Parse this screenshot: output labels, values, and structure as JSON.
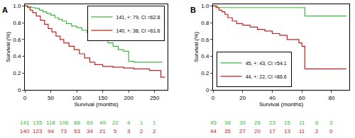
{
  "chart_data": [
    {
      "type": "step",
      "title": "A",
      "x_label": "Survival (months)",
      "y_label": "Survival (%)",
      "xlim": [
        0,
        275
      ],
      "xticks": [
        0,
        50,
        100,
        150,
        200,
        250
      ],
      "ylim": [
        0,
        1.02
      ],
      "yticks": [
        0,
        0.2,
        0.4,
        0.6,
        0.8,
        {
          "value": 1,
          "label": "1.0"
        }
      ],
      "legend": "upper right",
      "at_risk_x": [
        0,
        25,
        50,
        75,
        100,
        125,
        150,
        175,
        200,
        225,
        250
      ],
      "series": [
        {
          "name": "141, +: 79, CI =62.8",
          "color": "#3cb83c",
          "x": [
            0,
            5,
            12,
            20,
            28,
            35,
            42,
            50,
            58,
            65,
            72,
            80,
            90,
            100,
            110,
            120,
            130,
            140,
            150,
            160,
            170,
            180,
            190,
            200,
            210,
            265
          ],
          "values": [
            1,
            0.99,
            0.98,
            0.97,
            0.95,
            0.93,
            0.91,
            0.89,
            0.86,
            0.84,
            0.82,
            0.79,
            0.76,
            0.74,
            0.71,
            0.68,
            0.66,
            0.62,
            0.59,
            0.56,
            0.52,
            0.48,
            0.46,
            0.34,
            0.33,
            0.33
          ],
          "at_risk": [
            141,
            135,
            118,
            106,
            88,
            69,
            49,
            22,
            4,
            1,
            1
          ]
        },
        {
          "name": "140, +: 38, CI =61.6",
          "color": "#c8201e",
          "x": [
            0,
            5,
            10,
            15,
            22,
            30,
            38,
            45,
            52,
            60,
            68,
            75,
            85,
            95,
            105,
            115,
            125,
            135,
            150,
            170,
            190,
            210,
            240,
            262,
            270
          ],
          "values": [
            1,
            0.98,
            0.95,
            0.92,
            0.88,
            0.83,
            0.78,
            0.73,
            0.69,
            0.64,
            0.6,
            0.56,
            0.52,
            0.48,
            0.43,
            0.38,
            0.33,
            0.3,
            0.28,
            0.27,
            0.26,
            0.25,
            0.23,
            0.15,
            0.15
          ],
          "at_risk": [
            140,
            123,
            94,
            73,
            53,
            34,
            21,
            5,
            3,
            2,
            2
          ]
        }
      ]
    },
    {
      "type": "step",
      "title": "B",
      "x_label": "Survival (months)",
      "y_label": "Survival (%)",
      "xlim": [
        0,
        92
      ],
      "xticks": [
        0,
        20,
        40,
        60,
        80
      ],
      "ylim": [
        0,
        1.02
      ],
      "yticks": [
        0,
        0.2,
        0.4,
        0.6,
        0.8,
        {
          "value": 1,
          "label": "1.0"
        }
      ],
      "legend": "lower left",
      "at_risk_x": [
        0,
        10,
        20,
        30,
        40,
        50,
        60,
        70,
        80
      ],
      "series": [
        {
          "name": "45, +: 43, CI =54.1",
          "color": "#3cb83c",
          "x": [
            0,
            3,
            60,
            62,
            90
          ],
          "values": [
            1,
            0.98,
            0.98,
            0.88,
            0.88
          ],
          "at_risk": [
            45,
            38,
            30,
            26,
            23,
            15,
            11,
            6,
            3
          ]
        },
        {
          "name": "44, +: 22, CI =86.6",
          "color": "#c8201e",
          "x": [
            0,
            2,
            4,
            6,
            8,
            10,
            13,
            16,
            20,
            25,
            30,
            35,
            40,
            45,
            50,
            58,
            60,
            62,
            90
          ],
          "values": [
            1,
            0.98,
            0.95,
            0.93,
            0.9,
            0.86,
            0.82,
            0.79,
            0.77,
            0.75,
            0.72,
            0.7,
            0.67,
            0.65,
            0.6,
            0.56,
            0.52,
            0.25,
            0.25
          ],
          "at_risk": [
            44,
            35,
            27,
            20,
            17,
            13,
            11,
            2,
            0
          ]
        }
      ]
    }
  ]
}
